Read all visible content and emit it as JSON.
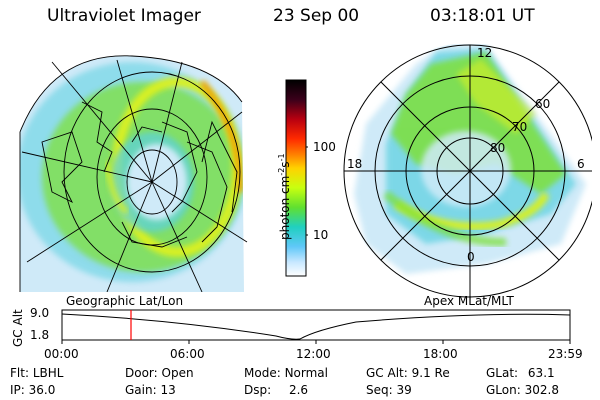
{
  "header": {
    "title": "Ultraviolet Imager",
    "date": "23 Sep 00",
    "time": "03:18:01 UT"
  },
  "colorbar": {
    "label_main": "photon cm",
    "label_exp1": "-2",
    "label_mid": "s",
    "label_exp2": "-1",
    "ticks": [
      "100",
      "10"
    ],
    "colors": [
      "#000000",
      "#3a001a",
      "#7a0030",
      "#b80010",
      "#ff2a00",
      "#ff8000",
      "#ffd200",
      "#e8ff00",
      "#98ff20",
      "#40e040",
      "#20d0c0",
      "#60c8f8",
      "#c8e8ff",
      "#ffffff"
    ]
  },
  "left_panel": {
    "caption": "Geographic Lat/Lon"
  },
  "right_panel": {
    "caption": "Apex MLat/MLT",
    "mlt_labels": [
      "12",
      "18",
      "6",
      "0"
    ],
    "mlat_labels": [
      "60",
      "70",
      "80"
    ]
  },
  "altitude_plot": {
    "ylabel": "GC Alt",
    "y_ticks": [
      "9.0",
      "1.8"
    ],
    "x_ticks": [
      "00:00",
      "06:00",
      "12:00",
      "18:00",
      "23:59"
    ],
    "marker_time": "03:18",
    "marker_color": "#ff0000"
  },
  "status": {
    "filter": {
      "label": "Flt:",
      "value": "LBHL"
    },
    "ip": {
      "label": "IP:",
      "value": "36.0"
    },
    "door": {
      "label": "Door:",
      "value": "Open"
    },
    "gain": {
      "label": "Gain:",
      "value": "13"
    },
    "mode": {
      "label": "Mode:",
      "value": "Normal"
    },
    "dsp": {
      "label": "Dsp:",
      "value": "2.6"
    },
    "gc_alt": {
      "label": "GC Alt:",
      "value": "9.1 Re"
    },
    "seq": {
      "label": "Seq:",
      "value": "39"
    },
    "glat": {
      "label": "GLat:",
      "value": "63.1"
    },
    "glon": {
      "label": "GLon:",
      "value": "302.8"
    }
  },
  "colors": {
    "aurora_green": "#7ee03a",
    "aurora_yellow": "#d8f020",
    "aurora_orange": "#f0a000",
    "cyan": "#5ad0e0",
    "pale": "#cfeaf8"
  }
}
